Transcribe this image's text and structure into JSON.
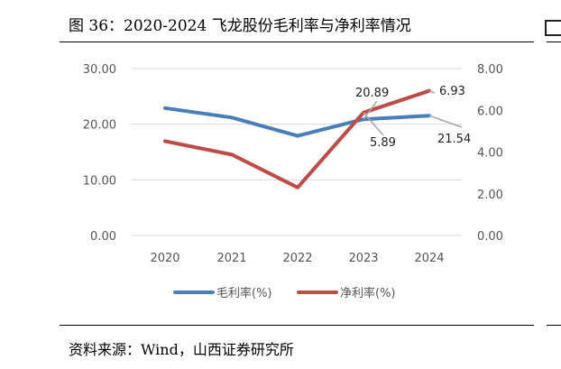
{
  "header": {
    "title": "图 36：2020-2024 飞龙股份毛利率与净利率情况"
  },
  "footer": {
    "source": "资料来源：Wind，山西证券研究所"
  },
  "chart_data": {
    "type": "line",
    "categories": [
      "2020",
      "2021",
      "2022",
      "2023",
      "2024"
    ],
    "series": [
      {
        "name": "毛利率(%)",
        "axis": "left",
        "color": "#4A7EBB",
        "values": [
          22.9,
          21.2,
          17.9,
          20.89,
          21.54
        ]
      },
      {
        "name": "净利率(%)",
        "axis": "right",
        "color": "#BE4B48",
        "values": [
          4.52,
          3.88,
          2.3,
          5.89,
          6.93
        ]
      }
    ],
    "y_left": {
      "ylim": [
        0,
        30
      ],
      "ticks": [
        "0.00",
        "10.00",
        "20.00",
        "30.00"
      ]
    },
    "y_right": {
      "ylim": [
        0,
        8
      ],
      "ticks": [
        "0.00",
        "2.00",
        "4.00",
        "6.00",
        "8.00"
      ]
    },
    "annotations": [
      {
        "text": "20.89",
        "series": 0,
        "index": 3
      },
      {
        "text": "21.54",
        "series": 0,
        "index": 4
      },
      {
        "text": "5.89",
        "series": 1,
        "index": 3
      },
      {
        "text": "6.93",
        "series": 1,
        "index": 4
      }
    ],
    "grid": true,
    "legend_position": "bottom"
  }
}
